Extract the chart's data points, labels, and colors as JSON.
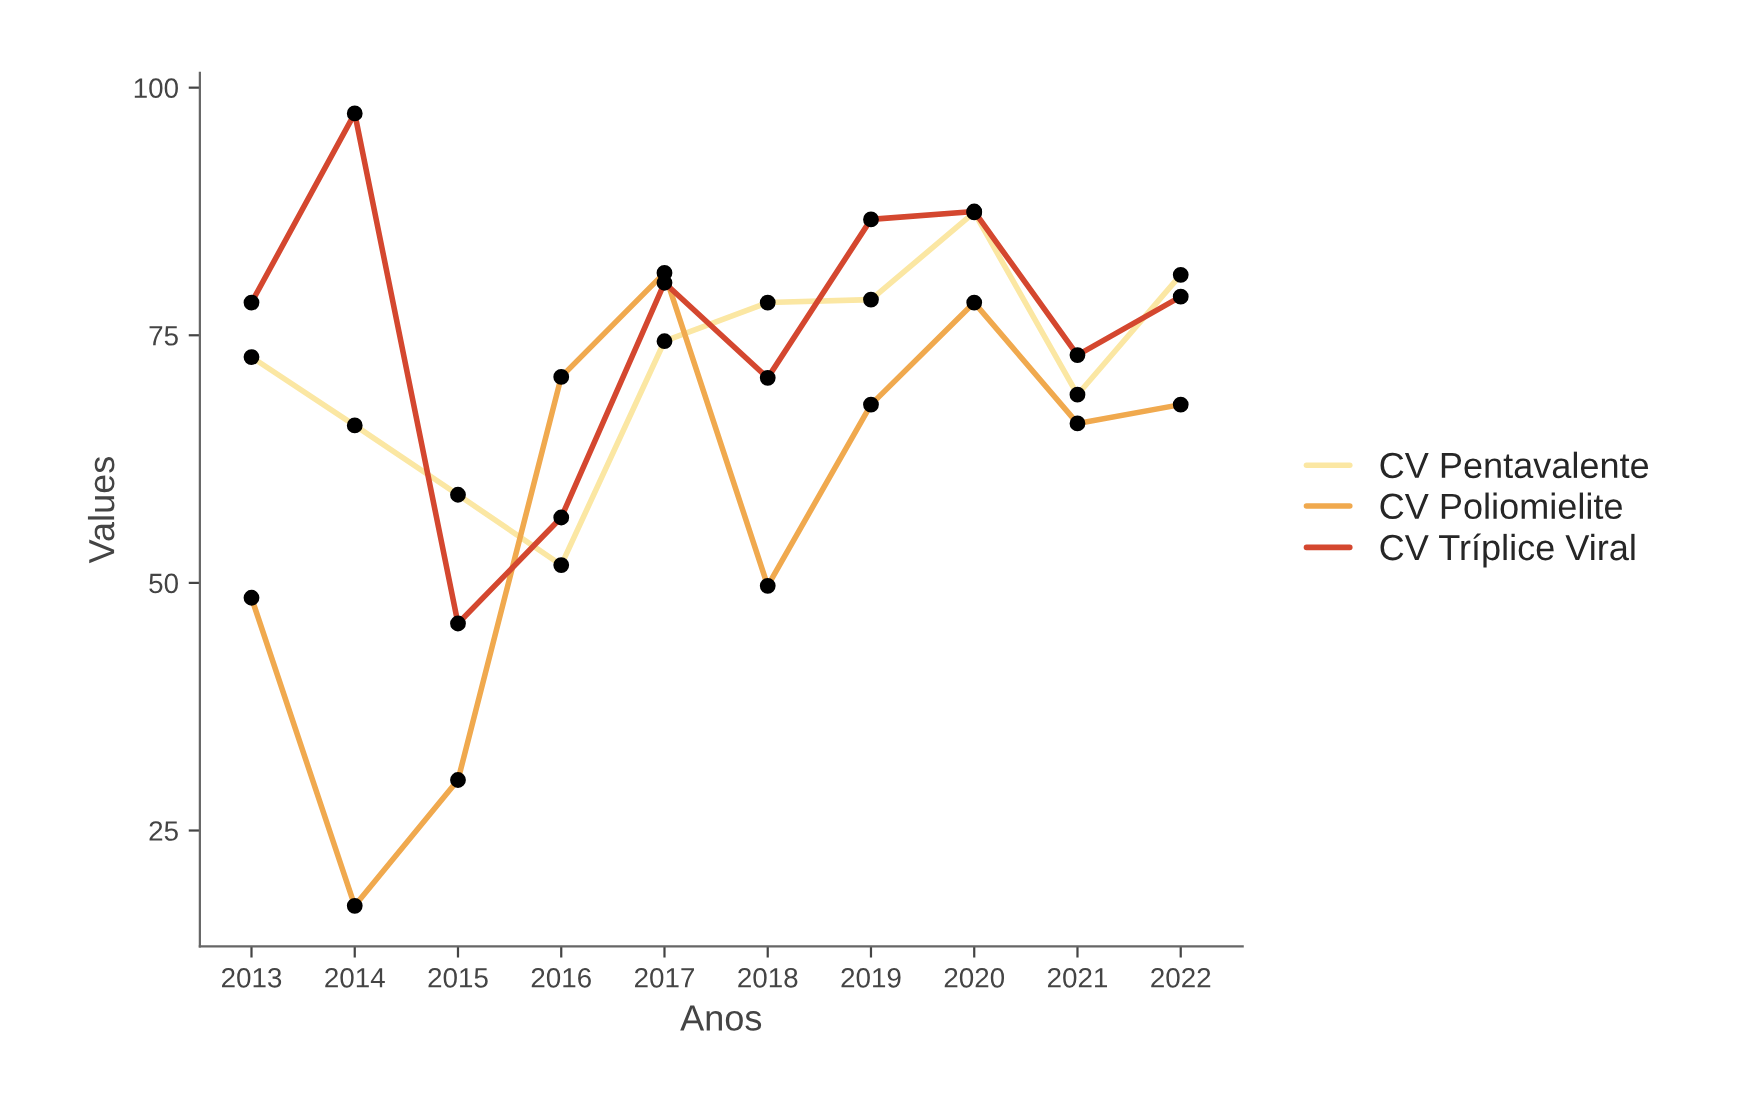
{
  "chart_data": {
    "type": "line",
    "xlabel": "Anos",
    "ylabel": "Values",
    "categories": [
      "2013",
      "2014",
      "2015",
      "2016",
      "2017",
      "2018",
      "2019",
      "2020",
      "2021",
      "2022"
    ],
    "series": [
      {
        "name": "CV Pentavalente",
        "color": "#fbe7a3",
        "values": [
          72.8,
          65.9,
          58.9,
          51.8,
          74.4,
          78.3,
          78.6,
          87.4,
          69.0,
          81.1
        ]
      },
      {
        "name": "CV Poliomielite",
        "color": "#f0a94e",
        "values": [
          48.5,
          17.4,
          30.1,
          70.8,
          81.3,
          49.7,
          68.0,
          78.3,
          66.1,
          68.0
        ]
      },
      {
        "name": "CV Tríplice Viral",
        "color": "#d4472f",
        "values": [
          78.3,
          97.4,
          45.9,
          56.6,
          80.3,
          70.7,
          86.7,
          87.5,
          73.0,
          78.9
        ]
      }
    ],
    "ylim": [
      13.3,
      101.5
    ],
    "yticks": [
      25,
      50,
      75,
      100
    ],
    "grid": false,
    "legend": "right",
    "marker": "circle",
    "line_style": "solid"
  }
}
